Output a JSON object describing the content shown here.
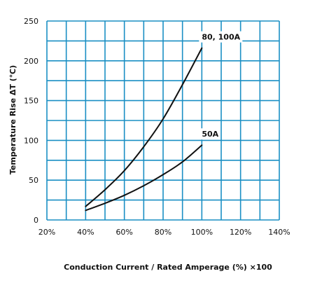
{
  "chart_data": {
    "type": "line",
    "title": "",
    "xlabel": "Conduction Current / Rated Amperage (%) ×100",
    "ylabel": "Temperature Rise ΔT (℃)",
    "xlim": [
      20,
      140
    ],
    "ylim": [
      0,
      250
    ],
    "x_ticks": [
      20,
      30,
      40,
      50,
      60,
      70,
      80,
      90,
      100,
      110,
      120,
      130,
      140
    ],
    "x_tick_labels": [
      "20%",
      "40%",
      "60%",
      "80%",
      "100%",
      "120%",
      "140%"
    ],
    "x_tick_label_values": [
      20,
      40,
      60,
      80,
      100,
      120,
      140
    ],
    "y_ticks": [
      0,
      25,
      50,
      75,
      100,
      125,
      150,
      175,
      200,
      225,
      250
    ],
    "y_tick_labels": [
      "0",
      "50",
      "100",
      "150",
      "200",
      "250"
    ],
    "y_tick_label_values": [
      0,
      50,
      100,
      150,
      200,
      250
    ],
    "grid": true,
    "legend": "none",
    "colors": {
      "grid": "#1a8fc4",
      "line": "#111111"
    },
    "series": [
      {
        "name": "80, 100A",
        "x": [
          40,
          50,
          60,
          70,
          80,
          90,
          100
        ],
        "y": [
          17,
          38,
          62,
          92,
          127,
          170,
          216
        ]
      },
      {
        "name": "50A",
        "x": [
          40,
          50,
          60,
          70,
          80,
          90,
          100
        ],
        "y": [
          12,
          21,
          31,
          43,
          57,
          73,
          94
        ]
      }
    ]
  }
}
